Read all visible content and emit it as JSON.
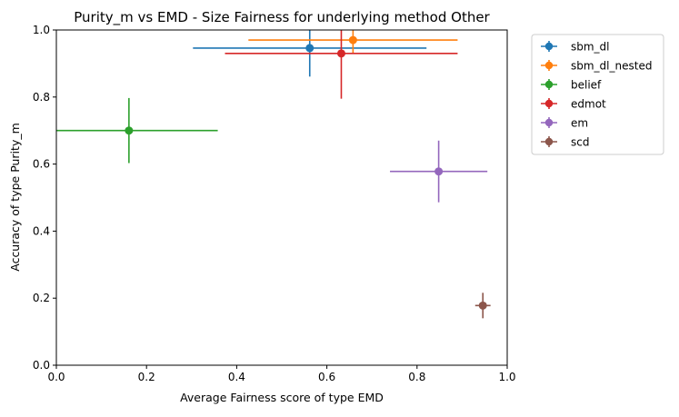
{
  "chart_data": {
    "type": "scatter",
    "title": "Purity_m vs EMD - Size Fairness for underlying method Other",
    "xlabel": "Average Fairness score of type EMD",
    "ylabel": "Accuracy of type Purity_m",
    "xlim": [
      0,
      1
    ],
    "ylim": [
      0,
      1
    ],
    "xticks": [
      "0.0",
      "0.2",
      "0.4",
      "0.6",
      "0.8",
      "1.0"
    ],
    "yticks": [
      "0.0",
      "0.2",
      "0.4",
      "0.6",
      "0.8",
      "1.0"
    ],
    "grid": false,
    "legend_position": "outside-right-top",
    "series": [
      {
        "name": "sbm_dl",
        "color": "#1f77b4",
        "x": 0.562,
        "y": 0.946,
        "xerr": 0.259,
        "yerr": 0.085
      },
      {
        "name": "sbm_dl_nested",
        "color": "#ff7f0e",
        "x": 0.658,
        "y": 0.97,
        "xerr": 0.232,
        "yerr": 0.04
      },
      {
        "name": "belief",
        "color": "#2ca02c",
        "x": 0.161,
        "y": 0.7,
        "xerr": 0.197,
        "yerr": 0.097
      },
      {
        "name": "edmot",
        "color": "#d62728",
        "x": 0.632,
        "y": 0.93,
        "xerr": 0.258,
        "yerr": 0.135
      },
      {
        "name": "em",
        "color": "#9467bd",
        "x": 0.848,
        "y": 0.578,
        "xerr": 0.108,
        "yerr": 0.092
      },
      {
        "name": "scd",
        "color": "#8c564b",
        "x": 0.946,
        "y": 0.178,
        "xerr": 0.017,
        "yerr": 0.038
      }
    ]
  }
}
